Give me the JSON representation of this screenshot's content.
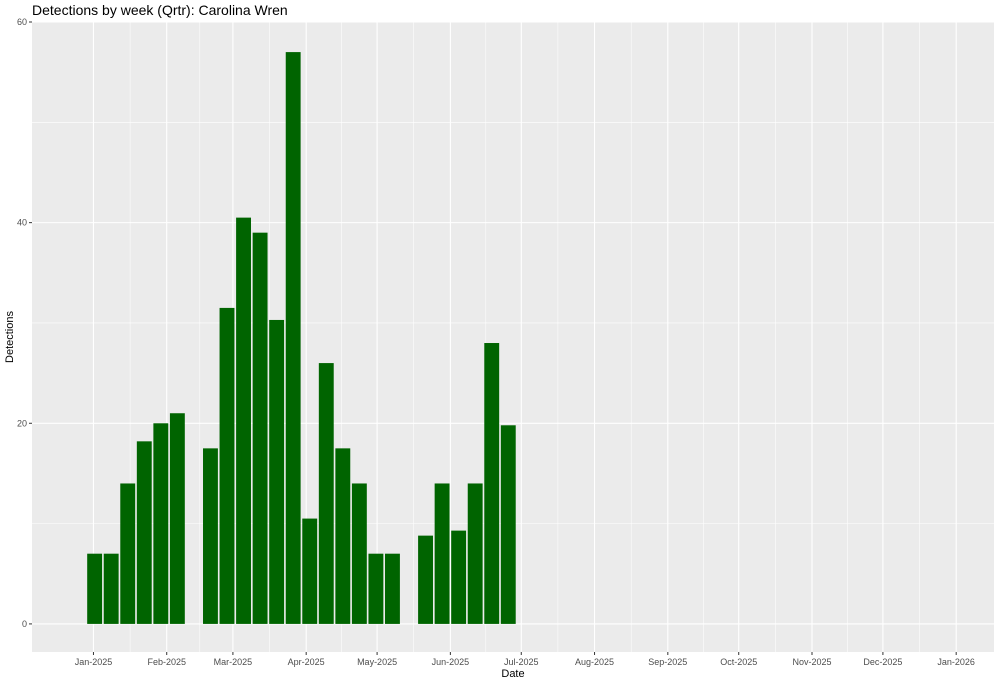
{
  "chart_data": {
    "type": "bar",
    "title": "Detections by week (Qrtr): Carolina Wren",
    "xlabel": "Date",
    "ylabel": "Detections",
    "grid": true,
    "legend": "none",
    "bar_color": "#006400",
    "panel_color": "#ebebeb",
    "gridline_color": "#ffffff",
    "xlim": [
      "2024-12-06",
      "2026-01-17"
    ],
    "ylim": [
      -2.8,
      60
    ],
    "x_ticks": [
      {
        "date": "2025-01-01",
        "label": "Jan-2025"
      },
      {
        "date": "2025-02-01",
        "label": "Feb-2025"
      },
      {
        "date": "2025-03-01",
        "label": "Mar-2025"
      },
      {
        "date": "2025-04-01",
        "label": "Apr-2025"
      },
      {
        "date": "2025-05-01",
        "label": "May-2025"
      },
      {
        "date": "2025-06-01",
        "label": "Jun-2025"
      },
      {
        "date": "2025-07-01",
        "label": "Jul-2025"
      },
      {
        "date": "2025-08-01",
        "label": "Aug-2025"
      },
      {
        "date": "2025-09-01",
        "label": "Sep-2025"
      },
      {
        "date": "2025-10-01",
        "label": "Oct-2025"
      },
      {
        "date": "2025-11-01",
        "label": "Nov-2025"
      },
      {
        "date": "2025-12-01",
        "label": "Dec-2025"
      },
      {
        "date": "2026-01-01",
        "label": "Jan-2026"
      }
    ],
    "y_ticks": [
      {
        "value": 0,
        "label": "0"
      },
      {
        "value": 20,
        "label": "20"
      },
      {
        "value": 40,
        "label": "40"
      },
      {
        "value": 60,
        "label": "60"
      }
    ],
    "bars": [
      {
        "week_start": "2024-12-29",
        "value": 7
      },
      {
        "week_start": "2025-01-05",
        "value": 7
      },
      {
        "week_start": "2025-01-12",
        "value": 14
      },
      {
        "week_start": "2025-01-19",
        "value": 18.2
      },
      {
        "week_start": "2025-01-26",
        "value": 20
      },
      {
        "week_start": "2025-02-02",
        "value": 21
      },
      {
        "week_start": "2025-02-16",
        "value": 17.5
      },
      {
        "week_start": "2025-02-23",
        "value": 31.5
      },
      {
        "week_start": "2025-03-02",
        "value": 40.5
      },
      {
        "week_start": "2025-03-09",
        "value": 39
      },
      {
        "week_start": "2025-03-16",
        "value": 30.3
      },
      {
        "week_start": "2025-03-23",
        "value": 57
      },
      {
        "week_start": "2025-03-30",
        "value": 10.5
      },
      {
        "week_start": "2025-04-06",
        "value": 26
      },
      {
        "week_start": "2025-04-13",
        "value": 17.5
      },
      {
        "week_start": "2025-04-20",
        "value": 14
      },
      {
        "week_start": "2025-04-27",
        "value": 7
      },
      {
        "week_start": "2025-05-04",
        "value": 7
      },
      {
        "week_start": "2025-05-18",
        "value": 8.8
      },
      {
        "week_start": "2025-05-25",
        "value": 14
      },
      {
        "week_start": "2025-06-01",
        "value": 9.3
      },
      {
        "week_start": "2025-06-08",
        "value": 14
      },
      {
        "week_start": "2025-06-15",
        "value": 28
      },
      {
        "week_start": "2025-06-22",
        "value": 19.8
      }
    ]
  }
}
